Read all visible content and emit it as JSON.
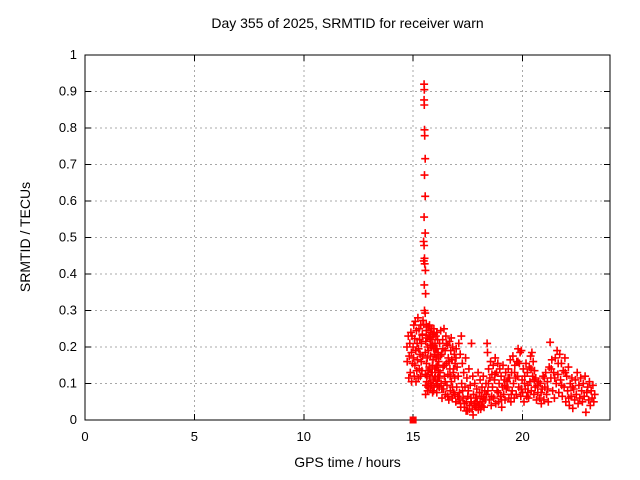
{
  "chart_data": {
    "type": "scatter",
    "title": "Day 355 of 2025, SRMTID for receiver warn",
    "xlabel": "GPS time / hours",
    "ylabel": "SRMTID / TECUs",
    "xlim": [
      0,
      24
    ],
    "ylim": [
      0,
      1
    ],
    "xticks": [
      0,
      5,
      10,
      15,
      20
    ],
    "xtick_labels": [
      "0",
      "5",
      "10",
      "15",
      "20"
    ],
    "yticks": [
      0,
      0.1,
      0.2,
      0.3,
      0.4,
      0.5,
      0.6,
      0.7,
      0.8,
      0.9,
      1
    ],
    "ytick_labels": [
      "0",
      "0.1",
      "0.2",
      "0.3",
      "0.4",
      "0.5",
      "0.6",
      "0.7",
      "0.8",
      "0.9",
      "1"
    ],
    "grid": true,
    "legend_position": "none",
    "marker": "plus",
    "colors": {
      "marker": "#ff0000",
      "grid": "#a8a8a8",
      "frame": "#000000",
      "text": "#000000"
    },
    "square_marker_point": [
      15.0,
      0.0
    ],
    "points": [
      [
        14.72,
        0.2
      ],
      [
        14.73,
        0.16
      ],
      [
        14.78,
        0.23
      ],
      [
        14.8,
        0.115
      ],
      [
        14.82,
        0.175
      ],
      [
        14.85,
        0.21
      ],
      [
        14.87,
        0.13
      ],
      [
        14.9,
        0.24
      ],
      [
        14.92,
        0.185
      ],
      [
        14.93,
        0.105
      ],
      [
        14.95,
        0.23
      ],
      [
        14.97,
        0.155
      ],
      [
        15.0,
        0.2
      ],
      [
        15.02,
        0.17
      ],
      [
        15.03,
        0.26
      ],
      [
        15.05,
        0.12
      ],
      [
        15.07,
        0.223
      ],
      [
        15.08,
        0.15
      ],
      [
        15.1,
        0.27
      ],
      [
        15.12,
        0.19
      ],
      [
        15.13,
        0.105
      ],
      [
        15.15,
        0.245
      ],
      [
        15.17,
        0.135
      ],
      [
        15.18,
        0.21
      ],
      [
        15.2,
        0.165
      ],
      [
        15.22,
        0.28
      ],
      [
        15.23,
        0.115
      ],
      [
        15.25,
        0.195
      ],
      [
        15.27,
        0.25
      ],
      [
        15.28,
        0.14
      ],
      [
        15.3,
        0.22
      ],
      [
        15.32,
        0.18
      ],
      [
        15.33,
        0.12
      ],
      [
        15.35,
        0.26
      ],
      [
        15.37,
        0.16
      ],
      [
        15.38,
        0.21
      ],
      [
        15.4,
        0.135
      ],
      [
        15.42,
        0.235
      ],
      [
        15.43,
        0.175
      ],
      [
        15.5,
        0.92
      ],
      [
        15.51,
        0.905
      ],
      [
        15.5,
        0.877
      ],
      [
        15.51,
        0.863
      ],
      [
        15.52,
        0.795
      ],
      [
        15.53,
        0.779
      ],
      [
        15.55,
        0.716
      ],
      [
        15.52,
        0.671
      ],
      [
        15.55,
        0.613
      ],
      [
        15.5,
        0.556
      ],
      [
        15.55,
        0.512
      ],
      [
        15.48,
        0.489
      ],
      [
        15.5,
        0.478
      ],
      [
        15.52,
        0.443
      ],
      [
        15.49,
        0.436
      ],
      [
        15.53,
        0.428
      ],
      [
        15.56,
        0.41
      ],
      [
        15.51,
        0.37
      ],
      [
        15.57,
        0.346
      ],
      [
        15.52,
        0.3
      ],
      [
        15.55,
        0.293
      ],
      [
        15.45,
        0.273
      ],
      [
        15.48,
        0.262
      ],
      [
        15.42,
        0.232
      ],
      [
        15.55,
        0.185
      ],
      [
        15.56,
        0.125
      ],
      [
        15.58,
        0.215
      ],
      [
        15.59,
        0.095
      ],
      [
        15.6,
        0.245
      ],
      [
        15.61,
        0.155
      ],
      [
        15.62,
        0.105
      ],
      [
        15.64,
        0.225
      ],
      [
        15.65,
        0.17
      ],
      [
        15.66,
        0.08
      ],
      [
        15.68,
        0.255
      ],
      [
        15.69,
        0.135
      ],
      [
        15.7,
        0.19
      ],
      [
        15.71,
        0.1
      ],
      [
        15.72,
        0.23
      ],
      [
        15.74,
        0.145
      ],
      [
        15.75,
        0.26
      ],
      [
        15.76,
        0.115
      ],
      [
        15.78,
        0.205
      ],
      [
        15.79,
        0.085
      ],
      [
        15.8,
        0.175
      ],
      [
        15.81,
        0.24
      ],
      [
        15.82,
        0.13
      ],
      [
        15.84,
        0.2
      ],
      [
        15.85,
        0.095
      ],
      [
        15.86,
        0.22
      ],
      [
        15.88,
        0.15
      ],
      [
        15.89,
        0.075
      ],
      [
        15.9,
        0.235
      ],
      [
        15.91,
        0.165
      ],
      [
        15.92,
        0.11
      ],
      [
        15.94,
        0.195
      ],
      [
        15.95,
        0.25
      ],
      [
        15.96,
        0.09
      ],
      [
        15.98,
        0.18
      ],
      [
        15.99,
        0.14
      ],
      [
        16.0,
        0.21
      ],
      [
        16.02,
        0.12
      ],
      [
        16.04,
        0.23
      ],
      [
        16.05,
        0.1
      ],
      [
        16.06,
        0.17
      ],
      [
        16.08,
        0.075
      ],
      [
        16.09,
        0.195
      ],
      [
        16.1,
        0.15
      ],
      [
        16.12,
        0.22
      ],
      [
        16.13,
        0.115
      ],
      [
        16.14,
        0.185
      ],
      [
        16.15,
        0.135
      ],
      [
        15.57,
        0.07
      ],
      [
        15.6,
        0.26
      ],
      [
        15.63,
        0.12
      ],
      [
        15.66,
        0.2
      ],
      [
        15.69,
        0.09
      ],
      [
        15.72,
        0.255
      ],
      [
        15.75,
        0.14
      ],
      [
        15.78,
        0.225
      ],
      [
        15.81,
        0.1
      ],
      [
        15.84,
        0.25
      ],
      [
        15.87,
        0.13
      ],
      [
        15.9,
        0.205
      ],
      [
        15.93,
        0.08
      ],
      [
        15.96,
        0.235
      ],
      [
        15.99,
        0.115
      ],
      [
        16.02,
        0.195
      ],
      [
        16.05,
        0.145
      ],
      [
        16.08,
        0.24
      ],
      [
        16.11,
        0.095
      ],
      [
        16.14,
        0.175
      ],
      [
        16.17,
        0.16
      ],
      [
        16.19,
        0.09
      ],
      [
        16.21,
        0.21
      ],
      [
        16.23,
        0.13
      ],
      [
        16.26,
        0.245
      ],
      [
        16.28,
        0.1
      ],
      [
        16.3,
        0.18
      ],
      [
        16.32,
        0.06
      ],
      [
        16.35,
        0.22
      ],
      [
        16.37,
        0.145
      ],
      [
        16.39,
        0.085
      ],
      [
        16.41,
        0.25
      ],
      [
        16.43,
        0.12
      ],
      [
        16.46,
        0.19
      ],
      [
        16.48,
        0.07
      ],
      [
        16.5,
        0.23
      ],
      [
        16.52,
        0.155
      ],
      [
        16.55,
        0.095
      ],
      [
        16.57,
        0.205
      ],
      [
        16.59,
        0.125
      ],
      [
        16.61,
        0.17
      ],
      [
        16.63,
        0.055
      ],
      [
        16.66,
        0.215
      ],
      [
        16.68,
        0.14
      ],
      [
        16.7,
        0.08
      ],
      [
        16.72,
        0.19
      ],
      [
        16.75,
        0.105
      ],
      [
        16.77,
        0.165
      ],
      [
        16.79,
        0.06
      ],
      [
        16.81,
        0.2
      ],
      [
        16.83,
        0.13
      ],
      [
        16.86,
        0.075
      ],
      [
        16.88,
        0.18
      ],
      [
        16.9,
        0.115
      ],
      [
        16.92,
        0.155
      ],
      [
        16.95,
        0.05
      ],
      [
        16.97,
        0.195
      ],
      [
        16.99,
        0.09
      ],
      [
        17.01,
        0.145
      ],
      [
        17.04,
        0.065
      ],
      [
        16.2,
        0.115
      ],
      [
        16.25,
        0.175
      ],
      [
        16.31,
        0.085
      ],
      [
        16.36,
        0.195
      ],
      [
        16.42,
        0.15
      ],
      [
        16.47,
        0.105
      ],
      [
        16.53,
        0.21
      ],
      [
        16.58,
        0.065
      ],
      [
        16.64,
        0.16
      ],
      [
        16.69,
        0.12
      ],
      [
        16.74,
        0.225
      ],
      [
        16.8,
        0.09
      ],
      [
        16.85,
        0.14
      ],
      [
        16.91,
        0.07
      ],
      [
        16.96,
        0.17
      ],
      [
        17.06,
        0.12
      ],
      [
        17.09,
        0.21
      ],
      [
        17.12,
        0.075
      ],
      [
        17.15,
        0.18
      ],
      [
        17.17,
        0.045
      ],
      [
        17.2,
        0.23
      ],
      [
        17.22,
        0.1
      ],
      [
        17.25,
        0.155
      ],
      [
        17.28,
        0.06
      ],
      [
        17.31,
        0.13
      ],
      [
        17.34,
        0.035
      ],
      [
        17.37,
        0.09
      ],
      [
        17.4,
        0.17
      ],
      [
        17.43,
        0.05
      ],
      [
        17.46,
        0.115
      ],
      [
        17.49,
        0.025
      ],
      [
        17.52,
        0.08
      ],
      [
        17.55,
        0.14
      ],
      [
        17.58,
        0.04
      ],
      [
        17.61,
        0.095
      ],
      [
        17.64,
        0.06
      ],
      [
        17.67,
        0.21
      ],
      [
        17.7,
        0.03
      ],
      [
        17.73,
        0.12
      ],
      [
        17.76,
        0.07
      ],
      [
        17.79,
        0.045
      ],
      [
        17.82,
        0.1
      ],
      [
        17.85,
        0.06
      ],
      [
        17.88,
        0.035
      ],
      [
        17.91,
        0.085
      ],
      [
        17.94,
        0.05
      ],
      [
        17.97,
        0.13
      ],
      [
        18.0,
        0.04
      ],
      [
        18.03,
        0.075
      ],
      [
        18.06,
        0.11
      ],
      [
        18.09,
        0.03
      ],
      [
        18.12,
        0.065
      ],
      [
        18.15,
        0.09
      ],
      [
        18.18,
        0.05
      ],
      [
        18.21,
        0.12
      ],
      [
        18.24,
        0.035
      ],
      [
        18.27,
        0.08
      ],
      [
        18.3,
        0.055
      ],
      [
        18.33,
        0.1
      ],
      [
        18.35,
        0.07
      ],
      [
        17.1,
        0.055
      ],
      [
        17.18,
        0.035
      ],
      [
        17.26,
        0.08
      ],
      [
        17.34,
        0.045
      ],
      [
        17.42,
        0.025
      ],
      [
        17.5,
        0.065
      ],
      [
        17.58,
        0.03
      ],
      [
        17.66,
        0.05
      ],
      [
        17.74,
        0.014
      ],
      [
        17.82,
        0.04
      ],
      [
        17.9,
        0.06
      ],
      [
        17.98,
        0.028
      ],
      [
        18.06,
        0.05
      ],
      [
        18.14,
        0.038
      ],
      [
        18.22,
        0.06
      ],
      [
        18.38,
        0.21
      ],
      [
        18.4,
        0.185
      ],
      [
        18.42,
        0.08
      ],
      [
        18.45,
        0.14
      ],
      [
        18.48,
        0.055
      ],
      [
        18.51,
        0.115
      ],
      [
        18.54,
        0.16
      ],
      [
        18.57,
        0.04
      ],
      [
        18.6,
        0.125
      ],
      [
        18.63,
        0.09
      ],
      [
        18.66,
        0.15
      ],
      [
        18.69,
        0.06
      ],
      [
        18.72,
        0.11
      ],
      [
        18.75,
        0.17
      ],
      [
        18.78,
        0.045
      ],
      [
        18.81,
        0.13
      ],
      [
        18.84,
        0.08
      ],
      [
        18.87,
        0.155
      ],
      [
        18.9,
        0.05
      ],
      [
        18.93,
        0.1
      ],
      [
        18.96,
        0.14
      ],
      [
        18.99,
        0.065
      ],
      [
        19.02,
        0.12
      ],
      [
        19.05,
        0.035
      ],
      [
        19.08,
        0.09
      ],
      [
        19.11,
        0.15
      ],
      [
        19.14,
        0.07
      ],
      [
        19.17,
        0.11
      ],
      [
        19.2,
        0.055
      ],
      [
        19.23,
        0.13
      ],
      [
        19.26,
        0.085
      ],
      [
        19.29,
        0.105
      ],
      [
        18.44,
        0.1
      ],
      [
        18.59,
        0.065
      ],
      [
        18.74,
        0.125
      ],
      [
        18.89,
        0.075
      ],
      [
        19.04,
        0.055
      ],
      [
        19.19,
        0.095
      ],
      [
        19.34,
        0.115
      ],
      [
        19.49,
        0.07
      ],
      [
        19.64,
        0.13
      ],
      [
        19.79,
        0.16
      ],
      [
        19.94,
        0.085
      ],
      [
        20.09,
        0.1
      ],
      [
        20.24,
        0.075
      ],
      [
        20.39,
        0.14
      ],
      [
        20.54,
        0.11
      ],
      [
        19.32,
        0.09
      ],
      [
        19.35,
        0.14
      ],
      [
        19.38,
        0.06
      ],
      [
        19.41,
        0.115
      ],
      [
        19.44,
        0.165
      ],
      [
        19.47,
        0.05
      ],
      [
        19.5,
        0.13
      ],
      [
        19.53,
        0.08
      ],
      [
        19.56,
        0.175
      ],
      [
        19.59,
        0.1
      ],
      [
        19.62,
        0.06
      ],
      [
        19.65,
        0.15
      ],
      [
        19.68,
        0.115
      ],
      [
        19.71,
        0.07
      ],
      [
        19.74,
        0.16
      ],
      [
        19.77,
        0.12
      ],
      [
        19.8,
        0.195
      ],
      [
        19.83,
        0.09
      ],
      [
        19.86,
        0.155
      ],
      [
        19.89,
        0.185
      ],
      [
        19.92,
        0.065
      ],
      [
        19.95,
        0.19
      ],
      [
        19.98,
        0.11
      ],
      [
        20.01,
        0.075
      ],
      [
        20.04,
        0.14
      ],
      [
        20.07,
        0.05
      ],
      [
        20.1,
        0.12
      ],
      [
        20.13,
        0.085
      ],
      [
        20.16,
        0.155
      ],
      [
        20.19,
        0.065
      ],
      [
        20.22,
        0.13
      ],
      [
        20.25,
        0.095
      ],
      [
        20.28,
        0.06
      ],
      [
        20.31,
        0.145
      ],
      [
        20.34,
        0.105
      ],
      [
        20.37,
        0.175
      ],
      [
        20.4,
        0.08
      ],
      [
        20.43,
        0.185
      ],
      [
        20.46,
        0.12
      ],
      [
        20.49,
        0.16
      ],
      [
        20.52,
        0.07
      ],
      [
        20.55,
        0.135
      ],
      [
        20.58,
        0.09
      ],
      [
        20.61,
        0.115
      ],
      [
        20.64,
        0.055
      ],
      [
        20.67,
        0.095
      ],
      [
        20.7,
        0.075
      ],
      [
        20.73,
        0.105
      ],
      [
        20.78,
        0.06
      ],
      [
        20.82,
        0.1
      ],
      [
        20.86,
        0.045
      ],
      [
        20.9,
        0.085
      ],
      [
        20.94,
        0.12
      ],
      [
        20.98,
        0.055
      ],
      [
        21.02,
        0.09
      ],
      [
        21.06,
        0.13
      ],
      [
        21.1,
        0.07
      ],
      [
        21.14,
        0.105
      ],
      [
        21.18,
        0.05
      ],
      [
        21.22,
        0.145
      ],
      [
        21.26,
        0.213
      ],
      [
        21.3,
        0.115
      ],
      [
        21.34,
        0.165
      ],
      [
        21.38,
        0.08
      ],
      [
        21.42,
        0.13
      ],
      [
        21.46,
        0.06
      ],
      [
        21.5,
        0.17
      ],
      [
        21.54,
        0.1
      ],
      [
        21.58,
        0.19
      ],
      [
        21.62,
        0.125
      ],
      [
        21.66,
        0.075
      ],
      [
        21.7,
        0.18
      ],
      [
        21.74,
        0.11
      ],
      [
        21.78,
        0.155
      ],
      [
        21.82,
        0.065
      ],
      [
        21.86,
        0.135
      ],
      [
        21.9,
        0.09
      ],
      [
        21.94,
        0.17
      ],
      [
        21.98,
        0.05
      ],
      [
        22.02,
        0.12
      ],
      [
        22.06,
        0.08
      ],
      [
        22.1,
        0.145
      ],
      [
        22.14,
        0.04
      ],
      [
        22.18,
        0.1
      ],
      [
        22.22,
        0.065
      ],
      [
        22.26,
        0.115
      ],
      [
        22.3,
        0.032
      ],
      [
        20.85,
        0.075
      ],
      [
        21.0,
        0.115
      ],
      [
        21.15,
        0.085
      ],
      [
        21.31,
        0.14
      ],
      [
        21.47,
        0.115
      ],
      [
        21.63,
        0.155
      ],
      [
        21.79,
        0.095
      ],
      [
        21.95,
        0.13
      ],
      [
        22.11,
        0.06
      ],
      [
        22.27,
        0.09
      ],
      [
        22.34,
        0.085
      ],
      [
        22.38,
        0.055
      ],
      [
        22.42,
        0.11
      ],
      [
        22.46,
        0.07
      ],
      [
        22.5,
        0.13
      ],
      [
        22.54,
        0.045
      ],
      [
        22.58,
        0.095
      ],
      [
        22.62,
        0.06
      ],
      [
        22.66,
        0.115
      ],
      [
        22.7,
        0.08
      ],
      [
        22.74,
        0.05
      ],
      [
        22.78,
        0.1
      ],
      [
        22.82,
        0.065
      ],
      [
        22.86,
        0.12
      ],
      [
        22.9,
        0.021
      ],
      [
        22.94,
        0.075
      ],
      [
        22.98,
        0.09
      ],
      [
        23.02,
        0.055
      ],
      [
        23.06,
        0.105
      ],
      [
        23.1,
        0.04
      ],
      [
        23.14,
        0.08
      ],
      [
        23.18,
        0.06
      ],
      [
        23.22,
        0.095
      ],
      [
        23.26,
        0.05
      ],
      [
        23.3,
        0.07
      ]
    ]
  }
}
